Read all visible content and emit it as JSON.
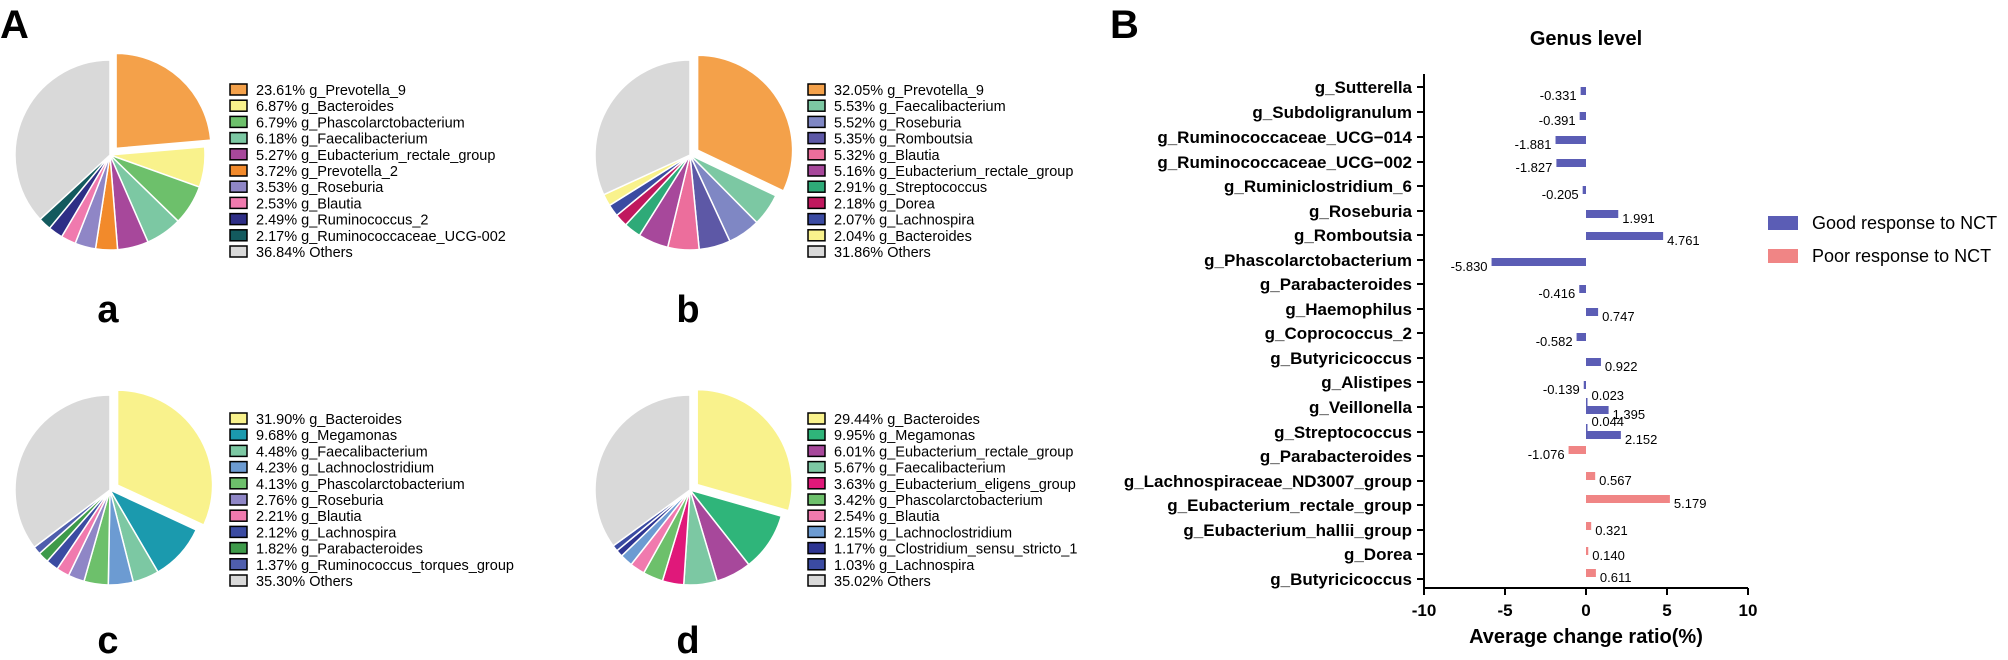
{
  "panel_a_label": "A",
  "panel_b_label": "B",
  "chart_data": [
    {
      "type": "pie",
      "panel": "A",
      "sublabel": "a",
      "slices": [
        {
          "pct": "23.61%",
          "value": 23.61,
          "label": "g_Prevotella_9",
          "color": "#F4A14A"
        },
        {
          "pct": "6.87%",
          "value": 6.87,
          "label": "g_Bacteroides",
          "color": "#F9F28C"
        },
        {
          "pct": "6.79%",
          "value": 6.79,
          "label": "g_Phascolarctobacterium",
          "color": "#6DC06B"
        },
        {
          "pct": "6.18%",
          "value": 6.18,
          "label": "g_Faecalibacterium",
          "color": "#7CC8A3"
        },
        {
          "pct": "5.27%",
          "value": 5.27,
          "label": "g_Eubacterium_rectale_group",
          "color": "#A7489B"
        },
        {
          "pct": "3.72%",
          "value": 3.72,
          "label": "g_Prevotella_2",
          "color": "#F28A2B"
        },
        {
          "pct": "3.53%",
          "value": 3.53,
          "label": "g_Roseburia",
          "color": "#8F86C6"
        },
        {
          "pct": "2.53%",
          "value": 2.53,
          "label": "g_Blautia",
          "color": "#F07AAE"
        },
        {
          "pct": "2.49%",
          "value": 2.49,
          "label": "g_Ruminococcus_2",
          "color": "#2E2E86"
        },
        {
          "pct": "2.17%",
          "value": 2.17,
          "label": "g_Ruminococcaceae_UCG-002",
          "color": "#135A5E"
        },
        {
          "pct": "36.84%",
          "value": 36.84,
          "label": "Others",
          "color": "#D9D9D9"
        }
      ]
    },
    {
      "type": "pie",
      "panel": "A",
      "sublabel": "b",
      "slices": [
        {
          "pct": "32.05%",
          "value": 32.05,
          "label": "g_Prevotella_9",
          "color": "#F4A14A"
        },
        {
          "pct": "5.53%",
          "value": 5.53,
          "label": "g_Faecalibacterium",
          "color": "#7CC8A3"
        },
        {
          "pct": "5.52%",
          "value": 5.52,
          "label": "g_Roseburia",
          "color": "#7F87C4"
        },
        {
          "pct": "5.35%",
          "value": 5.35,
          "label": "g_Romboutsia",
          "color": "#5D58A6"
        },
        {
          "pct": "5.32%",
          "value": 5.32,
          "label": "g_Blautia",
          "color": "#EC6E9C"
        },
        {
          "pct": "5.16%",
          "value": 5.16,
          "label": "g_Eubacterium_rectale_group",
          "color": "#A7489B"
        },
        {
          "pct": "2.91%",
          "value": 2.91,
          "label": "g_Streptococcus",
          "color": "#2EAA78"
        },
        {
          "pct": "2.18%",
          "value": 2.18,
          "label": "g_Dorea",
          "color": "#C0185E"
        },
        {
          "pct": "2.07%",
          "value": 2.07,
          "label": "g_Lachnospira",
          "color": "#3B4BA2"
        },
        {
          "pct": "2.04%",
          "value": 2.04,
          "label": "g_Bacteroides",
          "color": "#F9F28C"
        },
        {
          "pct": "31.86%",
          "value": 31.86,
          "label": "Others",
          "color": "#D9D9D9"
        }
      ]
    },
    {
      "type": "pie",
      "panel": "A",
      "sublabel": "c",
      "slices": [
        {
          "pct": "31.90%",
          "value": 31.9,
          "label": "g_Bacteroides",
          "color": "#F9F28C"
        },
        {
          "pct": "9.68%",
          "value": 9.68,
          "label": "g_Megamonas",
          "color": "#1B9AAE"
        },
        {
          "pct": "4.48%",
          "value": 4.48,
          "label": "g_Faecalibacterium",
          "color": "#7CC8A3"
        },
        {
          "pct": "4.23%",
          "value": 4.23,
          "label": "g_Lachnoclostridium",
          "color": "#6C9BD2"
        },
        {
          "pct": "4.13%",
          "value": 4.13,
          "label": "g_Phascolarctobacterium",
          "color": "#6DC06B"
        },
        {
          "pct": "2.76%",
          "value": 2.76,
          "label": "g_Roseburia",
          "color": "#8F86C6"
        },
        {
          "pct": "2.21%",
          "value": 2.21,
          "label": "g_Blautia",
          "color": "#F07AAE"
        },
        {
          "pct": "2.12%",
          "value": 2.12,
          "label": "g_Lachnospira",
          "color": "#3B4BA2"
        },
        {
          "pct": "1.82%",
          "value": 1.82,
          "label": "g_Parabacteroides",
          "color": "#3E9A4A"
        },
        {
          "pct": "1.37%",
          "value": 1.37,
          "label": "g_Ruminococcus_torques_group",
          "color": "#4F5EAD"
        },
        {
          "pct": "35.30%",
          "value": 35.3,
          "label": "Others",
          "color": "#D9D9D9"
        }
      ]
    },
    {
      "type": "pie",
      "panel": "A",
      "sublabel": "d",
      "slices": [
        {
          "pct": "29.44%",
          "value": 29.44,
          "label": "g_Bacteroides",
          "color": "#F9F28C"
        },
        {
          "pct": "9.95%",
          "value": 9.95,
          "label": "g_Megamonas",
          "color": "#2FB57A"
        },
        {
          "pct": "6.01%",
          "value": 6.01,
          "label": "g_Eubacterium_rectale_group",
          "color": "#A7489B"
        },
        {
          "pct": "5.67%",
          "value": 5.67,
          "label": "g_Faecalibacterium",
          "color": "#7CC8A3"
        },
        {
          "pct": "3.63%",
          "value": 3.63,
          "label": "g_Eubacterium_eligens_group",
          "color": "#E0187A"
        },
        {
          "pct": "3.42%",
          "value": 3.42,
          "label": "g_Phascolarctobacterium",
          "color": "#6DC06B"
        },
        {
          "pct": "2.54%",
          "value": 2.54,
          "label": "g_Blautia",
          "color": "#F07AAE"
        },
        {
          "pct": "2.15%",
          "value": 2.15,
          "label": "g_Lachnoclostridium",
          "color": "#6C9BD2"
        },
        {
          "pct": "1.17%",
          "value": 1.17,
          "label": "g_Clostridium_sensu_stricto_1",
          "color": "#2E3592"
        },
        {
          "pct": "1.03%",
          "value": 1.03,
          "label": "g_Lachnospira",
          "color": "#3B4BA2"
        },
        {
          "pct": "35.02%",
          "value": 35.02,
          "label": "Others",
          "color": "#D9D9D9"
        }
      ]
    },
    {
      "type": "bar",
      "panel": "B",
      "orientation": "horizontal",
      "title": "Genus level",
      "xlabel": "Average change ratio(%)",
      "xlim": [
        -10,
        10
      ],
      "xticks": [
        "-10",
        "-5",
        "0",
        "5",
        "10"
      ],
      "series": [
        {
          "name": "Good response to NCT",
          "color": "#5B5DB5"
        },
        {
          "name": "Poor response to NCT",
          "color": "#F08585"
        }
      ],
      "bars": [
        {
          "label": "g_Sutterella",
          "value": -0.331,
          "text": "-0.331",
          "series": 0
        },
        {
          "label": "g_Subdoligranulum",
          "value": -0.391,
          "text": "-0.391",
          "series": 0
        },
        {
          "label": "g_Ruminococcaceae_UCG−014",
          "value": -1.881,
          "text": "-1.881",
          "series": 0
        },
        {
          "label": "g_Ruminococcaceae_UCG−002",
          "value": -1.827,
          "text": "-1.827",
          "series": 0
        },
        {
          "label": "g_Ruminiclostridium_6",
          "value": -0.205,
          "text": "-0.205",
          "series": 0
        },
        {
          "label": "g_Roseburia",
          "value": 1.991,
          "text": "1.991",
          "series": 0
        },
        {
          "label": "g_Romboutsia",
          "value": 4.761,
          "text": "4.761",
          "series": 0
        },
        {
          "label": "g_Phascolarctobacterium",
          "value": -5.83,
          "text": "-5.830",
          "series": 0
        },
        {
          "label": "g_Parabacteroides",
          "value": -0.416,
          "text": "-0.416",
          "series": 0
        },
        {
          "label": "g_Haemophilus",
          "value": 0.747,
          "text": "0.747",
          "series": 0
        },
        {
          "label": "g_Coprococcus_2",
          "value": -0.582,
          "text": "-0.582",
          "series": 0
        },
        {
          "label": "g_Butyricicoccus",
          "value": 0.922,
          "text": "0.922",
          "series": 0
        },
        {
          "label": "g_Alistipes",
          "value": -0.139,
          "text": "-0.139",
          "series": 0
        },
        {
          "label": "g_Veillonella",
          "value": 0.023,
          "text": "0.023",
          "series": 0
        },
        {
          "label": "",
          "value": 1.395,
          "text": "1.395",
          "series": 0
        },
        {
          "label": "g_Streptococcus",
          "value": 0.044,
          "text": "0.044",
          "series": 0
        },
        {
          "label": "",
          "value": 2.152,
          "text": "2.152",
          "series": 0
        },
        {
          "label": "g_Parabacteroides",
          "value": -1.076,
          "text": "-1.076",
          "series": 1
        },
        {
          "label": "g_Lachnospiraceae_ND3007_group",
          "value": 0.567,
          "text": "0.567",
          "series": 1
        },
        {
          "label": "g_Eubacterium_rectale_group",
          "value": 5.179,
          "text": "5.179",
          "series": 1
        },
        {
          "label": "g_Eubacterium_hallii_group",
          "value": 0.321,
          "text": "0.321",
          "series": 1
        },
        {
          "label": "g_Dorea",
          "value": 0.14,
          "text": "0.140",
          "series": 1
        },
        {
          "label": "g_Butyricicoccus",
          "value": 0.611,
          "text": "0.611",
          "series": 1
        }
      ]
    }
  ]
}
